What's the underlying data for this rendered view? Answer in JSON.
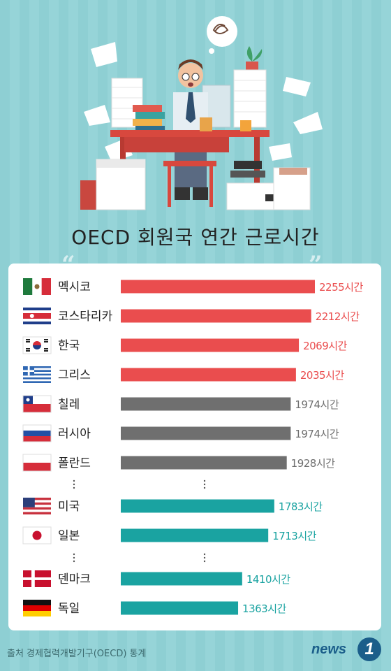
{
  "title": "OECD 회원국 연간 근로시간",
  "source": "출처 경제협력개발기구(OECD) 통계",
  "logo": {
    "text": "news",
    "badge": "1"
  },
  "colors": {
    "top": "#ea4d4e",
    "mid": "#6f6f6f",
    "low": "#1aa3a1",
    "background": "#8ecfd3"
  },
  "chart_data": {
    "type": "bar",
    "orientation": "horizontal",
    "title": "OECD 회원국 연간 근로시간",
    "unit": "시간",
    "categories": [
      "멕시코",
      "코스타리카",
      "한국",
      "그리스",
      "칠레",
      "러시아",
      "폴란드",
      "미국",
      "일본",
      "덴마크",
      "독일"
    ],
    "values": [
      2255,
      2212,
      2069,
      2035,
      1974,
      1974,
      1928,
      1783,
      1713,
      1410,
      1363
    ],
    "value_labels": [
      "2255시간",
      "2212시간",
      "2069시간",
      "2035시간",
      "1974시간",
      "1974시간",
      "1928시간",
      "1783시간",
      "1713시간",
      "1410시간",
      "1363시간"
    ],
    "color_groups": [
      "top",
      "top",
      "top",
      "top",
      "mid",
      "mid",
      "mid",
      "low",
      "low",
      "low",
      "low"
    ],
    "flags": [
      "mexico-flag",
      "costa-rica-flag",
      "korea-flag",
      "greece-flag",
      "chile-flag",
      "russia-flag",
      "poland-flag",
      "usa-flag",
      "japan-flag",
      "denmark-flag",
      "germany-flag"
    ],
    "gaps_after": [
      6,
      8
    ],
    "xlim": [
      0,
      2255
    ]
  }
}
